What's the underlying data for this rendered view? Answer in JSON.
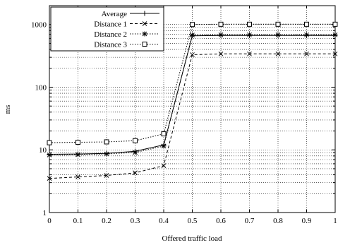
{
  "chart_data": {
    "type": "line",
    "title": "",
    "xlabel": "Offered traffic load",
    "ylabel": "ms",
    "x": [
      0,
      0.1,
      0.2,
      0.3,
      0.4,
      0.5,
      0.6,
      0.7,
      0.8,
      0.9,
      1
    ],
    "x_ticks": [
      "0",
      "0.1",
      "0.2",
      "0.3",
      "0.4",
      "0.5",
      "0.6",
      "0.7",
      "0.8",
      "0.9",
      "1"
    ],
    "y_ticks": [
      "1",
      "10",
      "100",
      "1000"
    ],
    "xlim": [
      0,
      1
    ],
    "ylim": [
      1,
      2000
    ],
    "y_scale": "log",
    "grid": true,
    "legend_position": "top-left",
    "series": [
      {
        "name": "Average",
        "style": "solid",
        "marker": "plus",
        "values": [
          8.5,
          8.6,
          8.8,
          9.5,
          12,
          660,
          670,
          670,
          670,
          670,
          670
        ]
      },
      {
        "name": "Distance 1",
        "style": "dashed",
        "marker": "cross",
        "values": [
          3.5,
          3.7,
          3.9,
          4.3,
          5.6,
          330,
          340,
          340,
          340,
          340,
          340
        ]
      },
      {
        "name": "Distance 2",
        "style": "dotted",
        "marker": "star",
        "values": [
          8.3,
          8.4,
          8.6,
          9.1,
          11.5,
          680,
          685,
          685,
          685,
          685,
          685
        ]
      },
      {
        "name": "Distance 3",
        "style": "dotted",
        "marker": "square",
        "values": [
          13,
          13.2,
          13.4,
          14,
          18,
          1000,
          1010,
          1010,
          1010,
          1010,
          1010
        ]
      }
    ]
  }
}
